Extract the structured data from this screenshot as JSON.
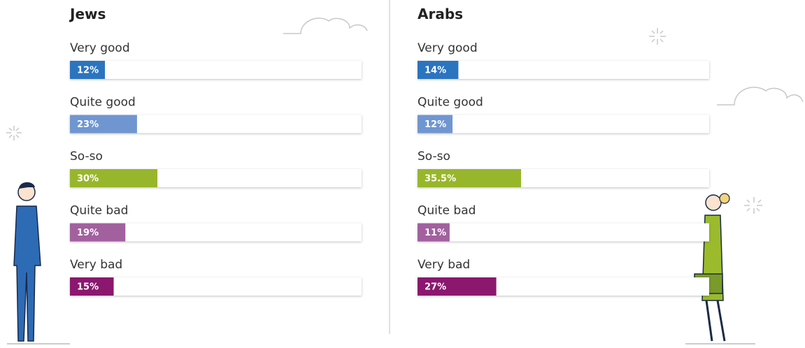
{
  "chart_data": [
    {
      "type": "bar",
      "orientation": "horizontal",
      "title": "Jews",
      "categories": [
        "Very good",
        "Quite good",
        "So-so",
        "Quite bad",
        "Very bad"
      ],
      "values": [
        12,
        23,
        30,
        19,
        15
      ],
      "value_labels": [
        "12%",
        "23%",
        "30%",
        "19%",
        "15%"
      ],
      "colors": [
        "#2b74bf",
        "#7096d1",
        "#98b62b",
        "#a2609f",
        "#8b176f"
      ],
      "xlim": [
        0,
        100
      ]
    },
    {
      "type": "bar",
      "orientation": "horizontal",
      "title": "Arabs",
      "categories": [
        "Very good",
        "Quite good",
        "So-so",
        "Quite bad",
        "Very bad"
      ],
      "values": [
        14,
        12,
        35.5,
        11,
        27
      ],
      "value_labels": [
        "14%",
        "12%",
        "35.5%",
        "11%",
        "27%"
      ],
      "colors": [
        "#2b74bf",
        "#7096d1",
        "#98b62b",
        "#a2609f",
        "#8b176f"
      ],
      "xlim": [
        0,
        100
      ]
    }
  ]
}
